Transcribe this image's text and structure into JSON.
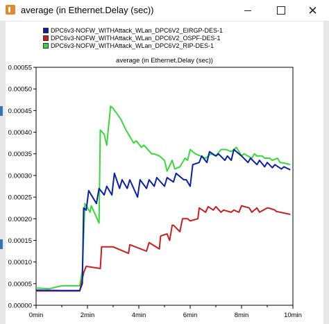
{
  "window": {
    "title": "average (in Ethernet.Delay (sec))",
    "minimize_icon": "minimize-icon",
    "maximize_icon": "maximize-icon",
    "close_icon": "close-icon",
    "close_glyph": "✕"
  },
  "colors": {
    "eirgp": "#0a1fa8",
    "ospf": "#c81e1e",
    "rip": "#38d838"
  },
  "chart_data": {
    "type": "line",
    "title": "average (in Ethernet.Delay (sec))",
    "xlabel": "",
    "ylabel": "",
    "xlim": [
      0,
      10
    ],
    "ylim": [
      0,
      0.00055
    ],
    "x_ticks": [
      {
        "value": 0,
        "label": "0min"
      },
      {
        "value": 2,
        "label": "2min"
      },
      {
        "value": 4,
        "label": "4min"
      },
      {
        "value": 6,
        "label": "6min"
      },
      {
        "value": 8,
        "label": "8min"
      },
      {
        "value": 10,
        "label": "10min"
      }
    ],
    "y_ticks": [
      {
        "value": 0,
        "label": "0.00000"
      },
      {
        "value": 5e-05,
        "label": "0.00005"
      },
      {
        "value": 0.0001,
        "label": "0.00010"
      },
      {
        "value": 0.00015,
        "label": "0.00015"
      },
      {
        "value": 0.0002,
        "label": "0.00020"
      },
      {
        "value": 0.00025,
        "label": "0.00025"
      },
      {
        "value": 0.0003,
        "label": "0.00030"
      },
      {
        "value": 0.00035,
        "label": "0.00035"
      },
      {
        "value": 0.0004,
        "label": "0.00040"
      },
      {
        "value": 0.00045,
        "label": "0.00045"
      },
      {
        "value": 0.0005,
        "label": "0.00050"
      },
      {
        "value": 0.00055,
        "label": "0.00055"
      }
    ],
    "grid": false,
    "legend_placement": "top-left",
    "series": [
      {
        "name": "DPC6v3-NOFW_WITHAttack_WLan_DPC6V2_EIRGP-DES-1",
        "color": "#0a1fa8",
        "x": [
          0,
          1.0,
          1.7,
          1.8,
          1.85,
          1.95,
          2.05,
          2.1,
          2.35,
          2.45,
          2.65,
          2.75,
          2.95,
          3.05,
          3.25,
          3.35,
          3.55,
          3.65,
          3.95,
          4.05,
          4.3,
          4.4,
          4.6,
          4.7,
          5.0,
          5.1,
          5.35,
          5.45,
          5.75,
          5.85,
          6.0,
          6.1,
          6.35,
          6.45,
          6.65,
          6.75,
          7.0,
          7.1,
          7.35,
          7.45,
          7.6,
          7.7,
          7.9,
          8.0,
          8.25,
          8.35,
          8.6,
          8.7,
          8.9,
          9.0,
          9.2,
          9.3,
          9.55,
          9.65,
          9.9
        ],
        "y": [
          3.5e-05,
          3.4e-05,
          3.4e-05,
          5e-05,
          0.000225,
          0.00022,
          0.000265,
          0.00026,
          0.000235,
          0.00027,
          0.000255,
          0.000275,
          0.000255,
          0.000305,
          0.00027,
          0.00029,
          0.00027,
          0.00029,
          0.00025,
          0.00029,
          0.00027,
          0.00029,
          0.000275,
          0.000295,
          0.000275,
          0.000295,
          0.000285,
          0.000305,
          0.00029,
          0.00029,
          0.000275,
          0.000325,
          0.00033,
          0.000345,
          0.00033,
          0.000355,
          0.000345,
          0.00035,
          0.000335,
          0.000345,
          0.000335,
          0.00036,
          0.00035,
          0.000345,
          0.00033,
          0.00034,
          0.000325,
          0.000335,
          0.00032,
          0.00033,
          0.000318,
          0.000325,
          0.000315,
          0.00032,
          0.000313
        ]
      },
      {
        "name": "DPC6v3-NOFW_WITHAttack_WLan_DPC6V2_OSPF-DES-1",
        "color": "#c81e1e",
        "x": [
          0,
          1.0,
          1.7,
          1.85,
          1.95,
          2.5,
          2.55,
          2.9,
          3.0,
          3.6,
          3.65,
          4.3,
          4.4,
          4.8,
          4.85,
          5.1,
          5.2,
          5.3,
          5.35,
          5.6,
          5.7,
          5.9,
          6.0,
          6.3,
          6.35,
          6.6,
          6.7,
          6.9,
          7.0,
          7.2,
          7.3,
          7.6,
          7.7,
          7.9,
          8.0,
          8.3,
          8.4,
          8.6,
          8.7,
          9.0,
          9.05,
          9.3,
          9.35,
          9.9
        ],
        "y": [
          3.3e-05,
          3.3e-05,
          3.3e-05,
          7.5e-05,
          9e-05,
          8.5e-05,
          0.000135,
          0.000135,
          0.000135,
          0.00012,
          0.00014,
          0.000125,
          0.000145,
          0.00013,
          0.00016,
          0.000165,
          0.00015,
          0.000185,
          0.000185,
          0.00017,
          0.0002,
          0.0002,
          0.000195,
          0.0002,
          0.000225,
          0.000215,
          0.000228,
          0.00022,
          0.000228,
          0.000215,
          0.00022,
          0.000215,
          0.00022,
          0.000215,
          0.00023,
          0.000225,
          0.000215,
          0.000225,
          0.000215,
          0.000225,
          0.000225,
          0.00022,
          0.000217,
          0.00021
        ]
      },
      {
        "name": "DPC6v3-NOFW_WITHAttack_WLan_DPC6V2_RIP-DES-1",
        "color": "#38d838",
        "x": [
          0,
          0.5,
          1.0,
          1.7,
          1.8,
          1.9,
          2.1,
          2.15,
          2.45,
          2.5,
          2.65,
          2.75,
          2.9,
          3.0,
          3.3,
          3.5,
          3.6,
          3.8,
          3.9,
          4.1,
          4.2,
          4.5,
          4.6,
          4.8,
          5.0,
          5.1,
          5.3,
          5.4,
          5.6,
          5.8,
          5.9,
          6.0,
          6.2,
          6.4,
          6.6,
          6.8,
          7.0,
          7.2,
          7.4,
          7.6,
          7.8,
          8.0,
          8.1,
          8.4,
          8.5,
          8.6,
          8.8,
          8.9,
          9.1,
          9.2,
          9.4,
          9.5,
          9.7,
          9.9
        ],
        "y": [
          4e-05,
          3.8e-05,
          4.5e-05,
          4.5e-05,
          8e-05,
          0.000235,
          0.000215,
          0.00023,
          0.00019,
          0.000405,
          0.000395,
          0.00037,
          0.00046,
          0.000455,
          0.00043,
          0.000405,
          0.000395,
          0.000375,
          0.00038,
          0.000365,
          0.00037,
          0.00035,
          0.00035,
          0.000345,
          0.000335,
          0.00031,
          0.000335,
          0.000315,
          0.00032,
          0.00034,
          0.000335,
          0.00036,
          0.00035,
          0.000345,
          0.00034,
          0.00035,
          0.000345,
          0.00036,
          0.00036,
          0.000355,
          0.000365,
          0.000345,
          0.00035,
          0.00034,
          0.00035,
          0.000345,
          0.000345,
          0.00034,
          0.00034,
          0.000335,
          0.00034,
          0.00033,
          0.000328,
          0.000325
        ]
      }
    ]
  }
}
